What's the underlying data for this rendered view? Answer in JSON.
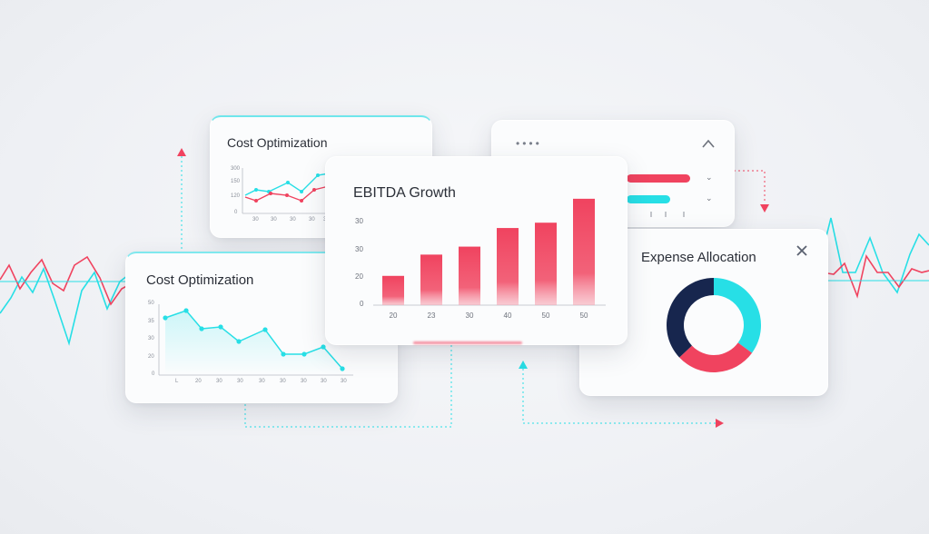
{
  "colors": {
    "accent_red": "#f0435f",
    "accent_cyan": "#27dfe6",
    "navy": "#17264e",
    "text": "#2b2f38"
  },
  "card_back_left": {
    "title": "Cost Optimization",
    "y_ticks": [
      "300",
      "150",
      "120",
      "0"
    ],
    "x_ticks": [
      "30",
      "30",
      "30",
      "30",
      "30"
    ]
  },
  "card_back_right": {
    "menu_icon": "dots-menu-icon",
    "collapse_icon": "chevron-up-icon",
    "row_icons": [
      "chevron-down-icon",
      "chevron-down-icon"
    ]
  },
  "card_front_left": {
    "title": "Cost Optimization",
    "y_ticks": [
      "50",
      "35",
      "30",
      "20",
      "0"
    ],
    "x_ticks": [
      "L",
      "20",
      "30",
      "30",
      "30",
      "30",
      "30",
      "30",
      "30",
      "30"
    ]
  },
  "card_center": {
    "title": "EBITDA Growth",
    "chart_data": {
      "type": "bar",
      "categories": [
        "20",
        "23",
        "30",
        "40",
        "50",
        "50"
      ],
      "values": [
        11,
        19,
        22,
        29,
        31,
        40
      ],
      "y_ticks": [
        "30",
        "30",
        "20",
        "0"
      ]
    }
  },
  "card_right": {
    "title": "Expense Allocation",
    "close_icon": "close-icon",
    "chart_data": {
      "type": "pie",
      "slices": [
        {
          "value": 35,
          "color": "#27dfe6"
        },
        {
          "value": 28,
          "color": "#f0435f"
        },
        {
          "value": 37,
          "color": "#17264e"
        }
      ]
    }
  }
}
